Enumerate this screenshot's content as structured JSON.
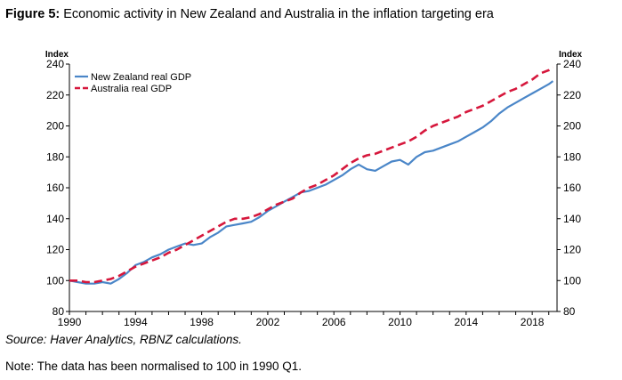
{
  "figure": {
    "label": "Figure 5:",
    "title": " Economic activity in New Zealand and Australia in the inflation targeting era",
    "source": "Source: Haver Analytics, RBNZ calculations.",
    "note": "Note: The data has been normalised to 100 in 1990 Q1."
  },
  "chart_data": {
    "type": "line",
    "left_axis_label": "Index",
    "right_axis_label": "Index",
    "ylim": [
      80,
      240
    ],
    "yticks": [
      80,
      100,
      120,
      140,
      160,
      180,
      200,
      220,
      240
    ],
    "xlim": [
      1990,
      2019.5
    ],
    "xticks": [
      1990,
      1994,
      1998,
      2002,
      2006,
      2010,
      2014,
      2018
    ],
    "legend_position": "top-left",
    "colors": {
      "New Zealand real GDP": "#4a86c8",
      "Australia real GDP": "#d6173c"
    },
    "series": [
      {
        "name": "New Zealand real GDP",
        "style": "solid",
        "x": [
          1990,
          1990.5,
          1991,
          1991.5,
          1992,
          1992.5,
          1993,
          1993.5,
          1994,
          1994.5,
          1995,
          1995.5,
          1996,
          1996.5,
          1997,
          1997.5,
          1998,
          1998.5,
          1999,
          1999.5,
          2000,
          2000.5,
          2001,
          2001.5,
          2002,
          2002.5,
          2003,
          2003.5,
          2004,
          2004.5,
          2005,
          2005.5,
          2006,
          2006.5,
          2007,
          2007.5,
          2008,
          2008.5,
          2009,
          2009.5,
          2010,
          2010.5,
          2011,
          2011.5,
          2012,
          2012.5,
          2013,
          2013.5,
          2014,
          2014.5,
          2015,
          2015.5,
          2016,
          2016.5,
          2017,
          2017.5,
          2018,
          2018.5,
          2019,
          2019.25
        ],
        "y": [
          100,
          99,
          98,
          98,
          99,
          98,
          101,
          105,
          110,
          112,
          115,
          117,
          120,
          122,
          124,
          123,
          124,
          128,
          131,
          135,
          136,
          137,
          138,
          141,
          145,
          148,
          151,
          154,
          157,
          158,
          160,
          162,
          165,
          168,
          172,
          175,
          172,
          171,
          174,
          177,
          178,
          175,
          180,
          183,
          184,
          186,
          188,
          190,
          193,
          196,
          199,
          203,
          208,
          212,
          215,
          218,
          221,
          224,
          227,
          229
        ]
      },
      {
        "name": "Australia real GDP",
        "style": "dashed",
        "x": [
          1990,
          1990.5,
          1991,
          1991.5,
          1992,
          1992.5,
          1993,
          1993.5,
          1994,
          1994.5,
          1995,
          1995.5,
          1996,
          1996.5,
          1997,
          1997.5,
          1998,
          1998.5,
          1999,
          1999.5,
          2000,
          2000.5,
          2001,
          2001.5,
          2002,
          2002.5,
          2003,
          2003.5,
          2004,
          2004.5,
          2005,
          2005.5,
          2006,
          2006.5,
          2007,
          2007.5,
          2008,
          2008.5,
          2009,
          2009.5,
          2010,
          2010.5,
          2011,
          2011.5,
          2012,
          2012.5,
          2013,
          2013.5,
          2014,
          2014.5,
          2015,
          2015.5,
          2016,
          2016.5,
          2017,
          2017.5,
          2018,
          2018.5,
          2019,
          2019.25
        ],
        "y": [
          100,
          100,
          99,
          99,
          100,
          101,
          103,
          106,
          109,
          111,
          113,
          115,
          118,
          120,
          123,
          126,
          129,
          132,
          135,
          138,
          140,
          140,
          141,
          143,
          146,
          149,
          151,
          153,
          157,
          160,
          162,
          165,
          168,
          172,
          176,
          179,
          181,
          182,
          184,
          186,
          188,
          190,
          193,
          197,
          200,
          202,
          204,
          206,
          209,
          211,
          213,
          216,
          219,
          222,
          224,
          227,
          230,
          234,
          236,
          238
        ]
      }
    ]
  }
}
